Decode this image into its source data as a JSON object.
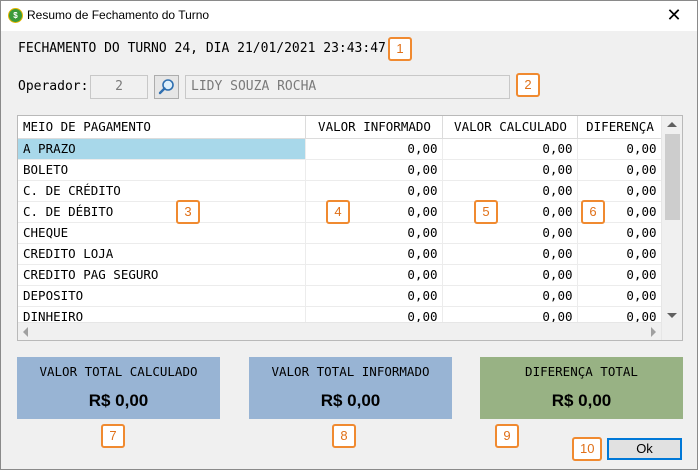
{
  "window": {
    "title": "Resumo de Fechamento do Turno",
    "icon": "app-icon",
    "close_glyph": "✕"
  },
  "heading": "FECHAMENTO DO TURNO 24, DIA 21/01/2021 23:43:47",
  "operator": {
    "label": "Operador:",
    "code": "2",
    "name": "LIDY SOUZA ROCHA",
    "search_icon": "magnifier-icon"
  },
  "grid": {
    "columns": [
      "MEIO DE PAGAMENTO",
      "VALOR INFORMADO",
      "VALOR CALCULADO",
      "DIFERENÇA"
    ],
    "rows": [
      {
        "name": "A PRAZO",
        "informado": "0,00",
        "calculado": "0,00",
        "diferenca": "0,00",
        "selected": true
      },
      {
        "name": "BOLETO",
        "informado": "0,00",
        "calculado": "0,00",
        "diferenca": "0,00"
      },
      {
        "name": "C. DE CRÉDITO",
        "informado": "0,00",
        "calculado": "0,00",
        "diferenca": "0,00"
      },
      {
        "name": "C. DE DÉBITO",
        "informado": "0,00",
        "calculado": "0,00",
        "diferenca": "0,00"
      },
      {
        "name": "CHEQUE",
        "informado": "0,00",
        "calculado": "0,00",
        "diferenca": "0,00"
      },
      {
        "name": "CREDITO LOJA",
        "informado": "0,00",
        "calculado": "0,00",
        "diferenca": "0,00"
      },
      {
        "name": "CREDITO PAG SEGURO",
        "informado": "0,00",
        "calculado": "0,00",
        "diferenca": "0,00"
      },
      {
        "name": "DEPOSITO",
        "informado": "0,00",
        "calculado": "0,00",
        "diferenca": "0,00"
      },
      {
        "name": "DINHEIRO",
        "informado": "0,00",
        "calculado": "0,00",
        "diferenca": "0,00"
      }
    ]
  },
  "totals": {
    "calculado": {
      "label": "VALOR TOTAL CALCULADO",
      "value": "R$ 0,00",
      "color": "#98b4d4"
    },
    "informado": {
      "label": "VALOR TOTAL INFORMADO",
      "value": "R$ 0,00",
      "color": "#98b4d4"
    },
    "diferenca": {
      "label": "DIFERENÇA TOTAL",
      "value": "R$ 0,00",
      "color": "#98b284"
    }
  },
  "ok_label": "Ok",
  "annotations": [
    "1",
    "2",
    "3",
    "4",
    "5",
    "6",
    "7",
    "8",
    "9",
    "10"
  ],
  "colors": {
    "annotation": "#f08a30",
    "selection": "#a8d8ea",
    "focus": "#0078d7"
  }
}
